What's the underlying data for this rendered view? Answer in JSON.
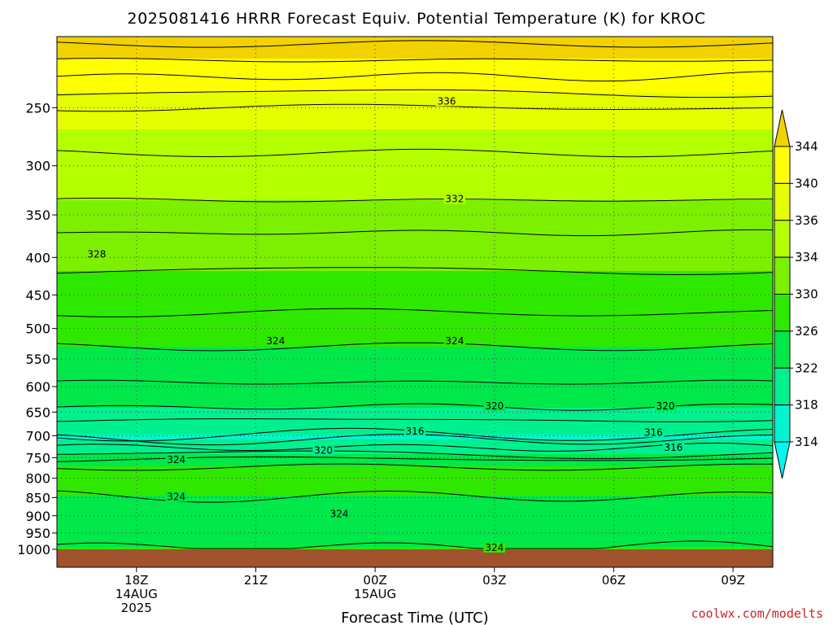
{
  "chart_data": {
    "type": "contour",
    "title": "2025081416 HRRR Forecast Equiv. Potential Temperature (K) for KROC",
    "xlabel": "Forecast Time (UTC)",
    "ylabel": "",
    "credit": "coolwx.com/modelts",
    "x_ticks": [
      {
        "label": "18Z",
        "sub1": "14AUG",
        "sub2": "2025",
        "hour": 18
      },
      {
        "label": "21Z",
        "sub1": "",
        "sub2": "",
        "hour": 21
      },
      {
        "label": "00Z",
        "sub1": "15AUG",
        "sub2": "",
        "hour": 24
      },
      {
        "label": "03Z",
        "sub1": "",
        "sub2": "",
        "hour": 27
      },
      {
        "label": "06Z",
        "sub1": "",
        "sub2": "",
        "hour": 30
      },
      {
        "label": "09Z",
        "sub1": "",
        "sub2": "",
        "hour": 33
      }
    ],
    "x_range_hours": [
      16,
      34
    ],
    "y_ticks": [
      250,
      300,
      350,
      400,
      450,
      500,
      550,
      600,
      650,
      700,
      750,
      800,
      850,
      900,
      950,
      1000
    ],
    "y_range_hPa": [
      200,
      1000
    ],
    "y_scale": "log-pressure (reversed)",
    "grid": "dotted",
    "colorbar": {
      "position": "right",
      "labels": [
        "344",
        "340",
        "336",
        "334",
        "330",
        "326",
        "322",
        "318",
        "314"
      ],
      "bins": [
        {
          "min": 342,
          "color": "#f2d200"
        },
        {
          "min": 338,
          "color": "#ffff00"
        },
        {
          "min": 335,
          "color": "#e6ff00"
        },
        {
          "min": 332,
          "color": "#b4ff00"
        },
        {
          "min": 328,
          "color": "#7cf000"
        },
        {
          "min": 324,
          "color": "#2fe800"
        },
        {
          "min": 320,
          "color": "#00e84a"
        },
        {
          "min": 316,
          "color": "#00f090"
        },
        {
          "min": 312,
          "color": "#00f5d0"
        },
        {
          "min": 300,
          "color": "#00f8f0"
        }
      ]
    },
    "ground_color": "#a0522d",
    "contour_interval_K": 2,
    "contour_labels": [
      {
        "text": "336",
        "hour": 25.8,
        "p": 245
      },
      {
        "text": "332",
        "hour": 26.0,
        "p": 333
      },
      {
        "text": "328",
        "hour": 17.0,
        "p": 396
      },
      {
        "text": "324",
        "hour": 21.5,
        "p": 520
      },
      {
        "text": "324",
        "hour": 26.0,
        "p": 520
      },
      {
        "text": "320",
        "hour": 27.0,
        "p": 638
      },
      {
        "text": "320",
        "hour": 31.3,
        "p": 638
      },
      {
        "text": "316",
        "hour": 25.0,
        "p": 690
      },
      {
        "text": "316",
        "hour": 31.0,
        "p": 693
      },
      {
        "text": "316",
        "hour": 31.5,
        "p": 727
      },
      {
        "text": "320",
        "hour": 22.7,
        "p": 733
      },
      {
        "text": "324",
        "hour": 19.0,
        "p": 755
      },
      {
        "text": "324",
        "hour": 19.0,
        "p": 848
      },
      {
        "text": "324",
        "hour": 23.1,
        "p": 895
      },
      {
        "text": "324",
        "hour": 27.0,
        "p": 995
      }
    ],
    "profile": [
      {
        "p": 200,
        "theta_e": 345
      },
      {
        "p": 215,
        "theta_e": 342
      },
      {
        "p": 235,
        "theta_e": 338.5
      },
      {
        "p": 250,
        "theta_e": 336
      },
      {
        "p": 275,
        "theta_e": 334.5
      },
      {
        "p": 300,
        "theta_e": 333.5
      },
      {
        "p": 335,
        "theta_e": 332
      },
      {
        "p": 370,
        "theta_e": 330
      },
      {
        "p": 400,
        "theta_e": 328.5
      },
      {
        "p": 450,
        "theta_e": 327
      },
      {
        "p": 500,
        "theta_e": 325
      },
      {
        "p": 530,
        "theta_e": 324
      },
      {
        "p": 580,
        "theta_e": 322.5
      },
      {
        "p": 640,
        "theta_e": 320
      },
      {
        "p": 680,
        "theta_e": 317
      },
      {
        "p": 705,
        "theta_e": 315.5
      },
      {
        "p": 735,
        "theta_e": 319
      },
      {
        "p": 760,
        "theta_e": 323
      },
      {
        "p": 790,
        "theta_e": 325.5
      },
      {
        "p": 830,
        "theta_e": 324.5
      },
      {
        "p": 880,
        "theta_e": 323
      },
      {
        "p": 930,
        "theta_e": 322.5
      },
      {
        "p": 980,
        "theta_e": 323.5
      },
      {
        "p": 1000,
        "theta_e": 324.5
      }
    ]
  }
}
